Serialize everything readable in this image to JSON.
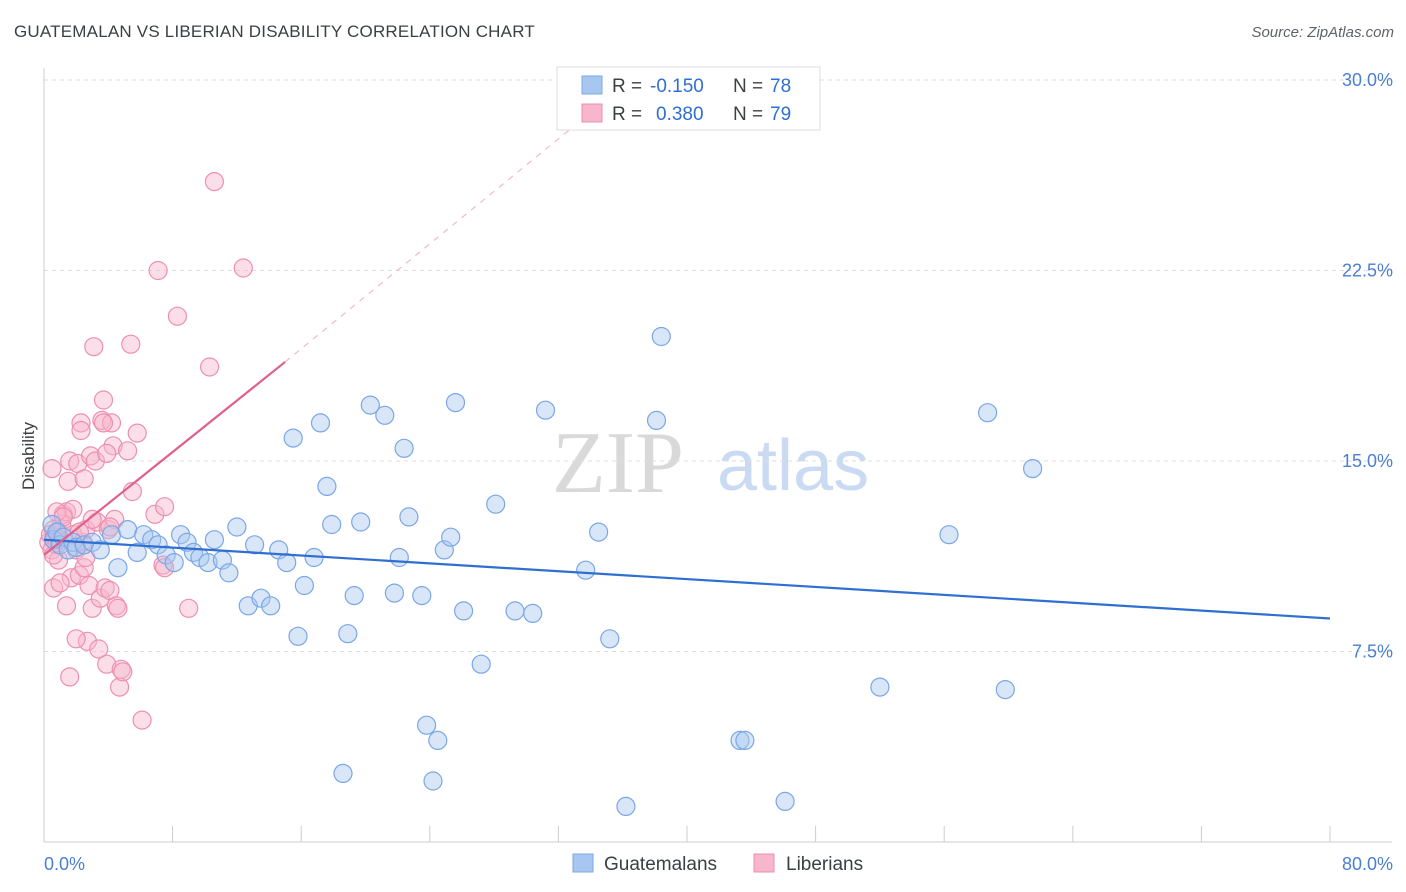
{
  "title": "GUATEMALAN VS LIBERIAN DISABILITY CORRELATION CHART",
  "source": "Source: ZipAtlas.com",
  "watermark": {
    "zip": "ZIP",
    "atlas": "atlas"
  },
  "colors": {
    "blue_fill": "#a8c7f0",
    "blue_stroke": "#7aa7e6",
    "blue_line": "#2f6fd1",
    "pink_fill": "#f7b6cc",
    "pink_stroke": "#ee8fb0",
    "pink_line": "#e0608a",
    "grid": "#dddddd",
    "axis": "#cccccc"
  },
  "legend_top": {
    "rows": [
      {
        "r_label": "R =",
        "r_value": "-0.150",
        "n_label": "N =",
        "n_value": "78"
      },
      {
        "r_label": "R =",
        "r_value": "0.380",
        "n_label": "N =",
        "n_value": "79"
      }
    ]
  },
  "legend_bottom": [
    "Guatemalans",
    "Liberians"
  ],
  "chart_data": {
    "type": "scatter",
    "title": "GUATEMALAN VS LIBERIAN DISABILITY CORRELATION CHART",
    "xlabel": "",
    "ylabel": "Disability",
    "xlim": [
      0,
      80
    ],
    "ylim": [
      0,
      30
    ],
    "x_tick_labels": [
      "0.0%",
      "80.0%"
    ],
    "y_ticks": [
      7.5,
      15.0,
      22.5,
      30.0
    ],
    "y_tick_labels": [
      "7.5%",
      "15.0%",
      "22.5%",
      "30.0%"
    ],
    "grid": true,
    "legend_position": "top-center",
    "series": [
      {
        "name": "Guatemalans",
        "r": -0.15,
        "n": 78,
        "trend": {
          "x0": 0,
          "y0": 11.9,
          "x1": 80,
          "y1": 8.8
        },
        "points": [
          [
            0.5,
            12.5
          ],
          [
            0.6,
            11.9
          ],
          [
            0.8,
            12.2
          ],
          [
            1.0,
            11.7
          ],
          [
            1.2,
            12.0
          ],
          [
            1.5,
            11.5
          ],
          [
            1.8,
            11.8
          ],
          [
            2.0,
            11.6
          ],
          [
            2.5,
            11.7
          ],
          [
            3.0,
            11.8
          ],
          [
            3.5,
            11.5
          ],
          [
            4.2,
            12.1
          ],
          [
            4.6,
            10.8
          ],
          [
            5.2,
            12.3
          ],
          [
            5.8,
            11.4
          ],
          [
            6.2,
            12.1
          ],
          [
            6.7,
            11.9
          ],
          [
            7.1,
            11.7
          ],
          [
            7.6,
            11.3
          ],
          [
            8.1,
            11.0
          ],
          [
            8.5,
            12.1
          ],
          [
            8.9,
            11.8
          ],
          [
            9.3,
            11.4
          ],
          [
            9.7,
            11.2
          ],
          [
            10.2,
            11.0
          ],
          [
            10.6,
            11.9
          ],
          [
            11.1,
            11.1
          ],
          [
            11.5,
            10.6
          ],
          [
            12.0,
            12.4
          ],
          [
            12.7,
            9.3
          ],
          [
            13.1,
            11.7
          ],
          [
            13.5,
            9.6
          ],
          [
            14.1,
            9.3
          ],
          [
            14.6,
            11.5
          ],
          [
            15.1,
            11.0
          ],
          [
            15.5,
            15.9
          ],
          [
            15.8,
            8.1
          ],
          [
            16.2,
            10.1
          ],
          [
            16.8,
            11.2
          ],
          [
            17.2,
            16.5
          ],
          [
            17.6,
            14.0
          ],
          [
            17.9,
            12.5
          ],
          [
            18.6,
            2.7
          ],
          [
            18.9,
            8.2
          ],
          [
            19.3,
            9.7
          ],
          [
            19.7,
            12.6
          ],
          [
            20.3,
            17.2
          ],
          [
            21.2,
            16.8
          ],
          [
            21.8,
            9.8
          ],
          [
            22.1,
            11.2
          ],
          [
            22.4,
            15.5
          ],
          [
            22.7,
            12.8
          ],
          [
            23.5,
            9.7
          ],
          [
            23.8,
            4.6
          ],
          [
            24.2,
            2.4
          ],
          [
            24.5,
            4.0
          ],
          [
            24.9,
            11.5
          ],
          [
            25.3,
            12.0
          ],
          [
            25.6,
            17.3
          ],
          [
            26.1,
            9.1
          ],
          [
            27.2,
            7.0
          ],
          [
            28.1,
            13.3
          ],
          [
            29.3,
            9.1
          ],
          [
            30.4,
            9.0
          ],
          [
            31.2,
            17.0
          ],
          [
            33.7,
            10.7
          ],
          [
            34.5,
            12.2
          ],
          [
            35.2,
            8.0
          ],
          [
            36.2,
            1.4
          ],
          [
            38.1,
            16.6
          ],
          [
            38.4,
            19.9
          ],
          [
            43.3,
            4.0
          ],
          [
            43.6,
            4.0
          ],
          [
            46.1,
            1.6
          ],
          [
            52.0,
            6.1
          ],
          [
            56.3,
            12.1
          ],
          [
            58.7,
            16.9
          ],
          [
            59.8,
            6.0
          ],
          [
            61.5,
            14.7
          ]
        ]
      },
      {
        "name": "Liberians",
        "r": 0.38,
        "n": 79,
        "trend": {
          "x0": 0,
          "y0": 11.3,
          "x1": 15,
          "y1": 18.9,
          "dash_to_x": 33,
          "dash_to_y": 28.2
        },
        "points": [
          [
            0.3,
            11.8
          ],
          [
            0.4,
            12.1
          ],
          [
            0.5,
            11.5
          ],
          [
            0.6,
            12.3
          ],
          [
            0.7,
            12.0
          ],
          [
            0.8,
            11.7
          ],
          [
            0.9,
            12.2
          ],
          [
            1.0,
            11.9
          ],
          [
            1.1,
            12.5
          ],
          [
            0.5,
            14.7
          ],
          [
            0.6,
            10.0
          ],
          [
            0.9,
            11.1
          ],
          [
            1.2,
            12.9
          ],
          [
            1.4,
            13.0
          ],
          [
            1.5,
            14.2
          ],
          [
            1.6,
            15.0
          ],
          [
            1.7,
            10.4
          ],
          [
            1.8,
            12.1
          ],
          [
            2.0,
            11.5
          ],
          [
            2.1,
            14.9
          ],
          [
            2.2,
            10.5
          ],
          [
            2.3,
            16.5
          ],
          [
            2.4,
            11.8
          ],
          [
            2.5,
            10.8
          ],
          [
            2.6,
            12.3
          ],
          [
            2.7,
            7.9
          ],
          [
            2.8,
            10.1
          ],
          [
            2.9,
            15.2
          ],
          [
            3.0,
            9.2
          ],
          [
            3.1,
            19.5
          ],
          [
            3.2,
            15.0
          ],
          [
            3.3,
            12.6
          ],
          [
            3.4,
            7.6
          ],
          [
            3.5,
            9.6
          ],
          [
            3.6,
            16.6
          ],
          [
            3.7,
            17.4
          ],
          [
            3.8,
            10.0
          ],
          [
            3.9,
            7.0
          ],
          [
            4.0,
            12.3
          ],
          [
            4.1,
            9.9
          ],
          [
            4.2,
            16.5
          ],
          [
            4.3,
            15.6
          ],
          [
            4.4,
            12.7
          ],
          [
            4.5,
            9.3
          ],
          [
            4.6,
            9.2
          ],
          [
            4.7,
            6.1
          ],
          [
            4.8,
            6.8
          ],
          [
            4.9,
            6.7
          ],
          [
            5.5,
            13.8
          ],
          [
            6.1,
            4.8
          ],
          [
            6.9,
            12.9
          ],
          [
            7.1,
            22.5
          ],
          [
            7.4,
            10.9
          ],
          [
            7.5,
            13.2
          ],
          [
            8.3,
            20.7
          ],
          [
            9.0,
            9.2
          ],
          [
            10.3,
            18.7
          ],
          [
            10.6,
            26.0
          ],
          [
            12.4,
            22.6
          ],
          [
            5.4,
            19.6
          ],
          [
            5.8,
            16.1
          ],
          [
            2.3,
            16.2
          ],
          [
            3.7,
            16.5
          ],
          [
            1.4,
            9.3
          ],
          [
            1.6,
            6.5
          ],
          [
            2.0,
            8.0
          ],
          [
            2.6,
            11.2
          ],
          [
            5.2,
            15.4
          ],
          [
            7.5,
            10.8
          ],
          [
            4.1,
            12.4
          ],
          [
            3.0,
            12.7
          ],
          [
            1.8,
            13.1
          ],
          [
            0.8,
            13.0
          ],
          [
            1.2,
            12.8
          ],
          [
            2.2,
            12.2
          ],
          [
            0.6,
            11.3
          ],
          [
            3.9,
            15.3
          ],
          [
            1.0,
            10.2
          ],
          [
            2.5,
            14.3
          ]
        ]
      }
    ]
  }
}
